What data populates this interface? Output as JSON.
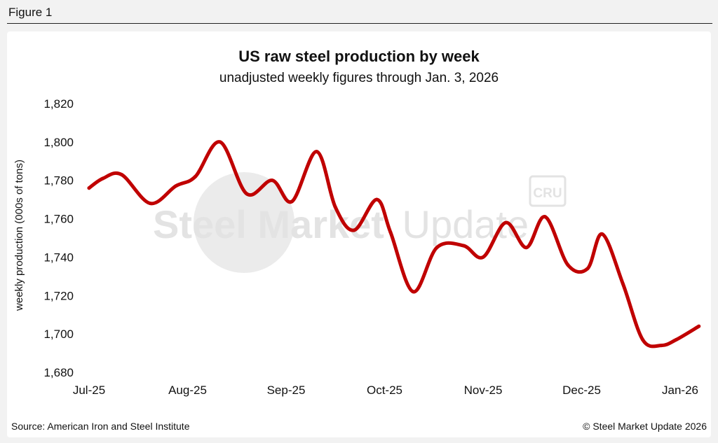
{
  "figure_label": "Figure 1",
  "source": "Source: American Iron and Steel Institute",
  "copyright": "© Steel Market Update 2026",
  "watermark": {
    "text_bold": "Steel Market",
    "text_light": "Update",
    "badge": "CRU"
  },
  "colors": {
    "line": "#c00000",
    "panel": "#ffffff",
    "background": "#f2f2f2",
    "watermark": "#e6e6e6"
  },
  "chart_data": {
    "type": "line",
    "title": "US raw steel production by week",
    "subtitle": "unadjusted weekly figures through Jan. 3, 2026",
    "xlabel": "",
    "ylabel": "weekly production (000s of tons)",
    "ylim": [
      1680,
      1820
    ],
    "yticks": [
      1680,
      1700,
      1720,
      1740,
      1760,
      1780,
      1800,
      1820
    ],
    "ytick_labels": [
      "1,680",
      "1,700",
      "1,720",
      "1,740",
      "1,760",
      "1,780",
      "1,800",
      "1,820"
    ],
    "xticks": [
      0,
      1,
      2,
      3,
      4,
      5,
      6
    ],
    "xtick_labels": [
      "Jul-25",
      "Aug-25",
      "Sep-25",
      "Oct-25",
      "Nov-25",
      "Dec-25",
      "Jan-26"
    ],
    "grid": false,
    "legend": "none",
    "series": [
      {
        "name": "Weekly raw steel production",
        "x": [
          0.0,
          0.14,
          0.33,
          0.62,
          0.88,
          1.08,
          1.33,
          1.6,
          1.86,
          2.06,
          2.31,
          2.5,
          2.69,
          2.92,
          3.06,
          3.29,
          3.53,
          3.8,
          4.0,
          4.23,
          4.44,
          4.63,
          4.86,
          5.06,
          5.21,
          5.42,
          5.62,
          5.81,
          5.96,
          6.19
        ],
        "values": [
          1776,
          1781,
          1783,
          1768,
          1777,
          1782,
          1800,
          1773,
          1780,
          1769,
          1795,
          1766,
          1754,
          1770,
          1753,
          1722,
          1745,
          1746,
          1740,
          1758,
          1745,
          1761,
          1736,
          1734,
          1752,
          1726,
          1697,
          1694,
          1697,
          1704
        ]
      }
    ]
  }
}
